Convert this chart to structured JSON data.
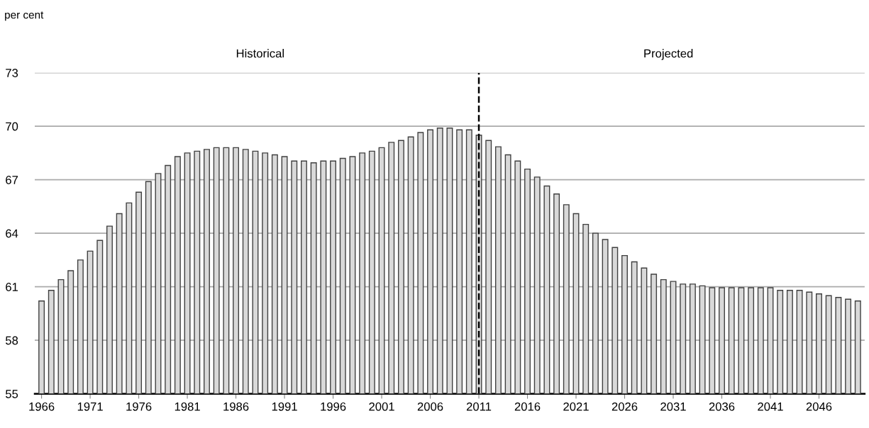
{
  "chart_data": {
    "type": "bar",
    "ylabel": "per cent",
    "categories": [
      "1966",
      null,
      null,
      null,
      null,
      "1971",
      null,
      null,
      null,
      null,
      "1976",
      null,
      null,
      null,
      null,
      "1981",
      null,
      null,
      null,
      null,
      "1986",
      null,
      null,
      null,
      null,
      "1991",
      null,
      null,
      null,
      null,
      "1996",
      null,
      null,
      null,
      null,
      "2001",
      null,
      null,
      null,
      null,
      "2006",
      null,
      null,
      null,
      null,
      "2011",
      null,
      null,
      null,
      null,
      "2016",
      null,
      null,
      null,
      null,
      "2021",
      null,
      null,
      null,
      null,
      "2026",
      null,
      null,
      null,
      null,
      "2031",
      null,
      null,
      null,
      null,
      "2036",
      null,
      null,
      null,
      null,
      "2041",
      null,
      null,
      null,
      null,
      "2046",
      null,
      null,
      null,
      null
    ],
    "values": [
      60.2,
      60.8,
      61.4,
      61.9,
      62.5,
      63.0,
      63.6,
      64.4,
      65.1,
      65.7,
      66.3,
      66.9,
      67.35,
      67.8,
      68.3,
      68.5,
      68.6,
      68.7,
      68.8,
      68.8,
      68.8,
      68.7,
      68.6,
      68.5,
      68.4,
      68.3,
      68.05,
      68.05,
      67.95,
      68.05,
      68.05,
      68.2,
      68.3,
      68.5,
      68.6,
      68.8,
      69.1,
      69.2,
      69.4,
      69.65,
      69.8,
      69.9,
      69.9,
      69.8,
      69.8,
      69.5,
      69.2,
      68.85,
      68.4,
      68.05,
      67.6,
      67.15,
      66.65,
      66.2,
      65.6,
      65.1,
      64.5,
      64.0,
      63.65,
      63.2,
      62.75,
      62.4,
      62.05,
      61.7,
      61.4,
      61.3,
      61.15,
      61.15,
      61.05,
      60.95,
      60.95,
      60.95,
      60.95,
      60.95,
      60.95,
      60.95,
      60.8,
      60.8,
      60.8,
      60.7,
      60.6,
      60.5,
      60.4,
      60.3,
      60.2
    ],
    "color": "#d9d9d9",
    "ylim": [
      55,
      73
    ],
    "yticks": [
      55,
      58,
      61,
      64,
      67,
      70,
      73
    ],
    "grid": "y",
    "ref_lines": [
      {
        "axis": "x",
        "value": "2011",
        "color": "#000000",
        "line_style": "dashed"
      }
    ],
    "annotations": [
      "Historical",
      "Projected"
    ]
  }
}
